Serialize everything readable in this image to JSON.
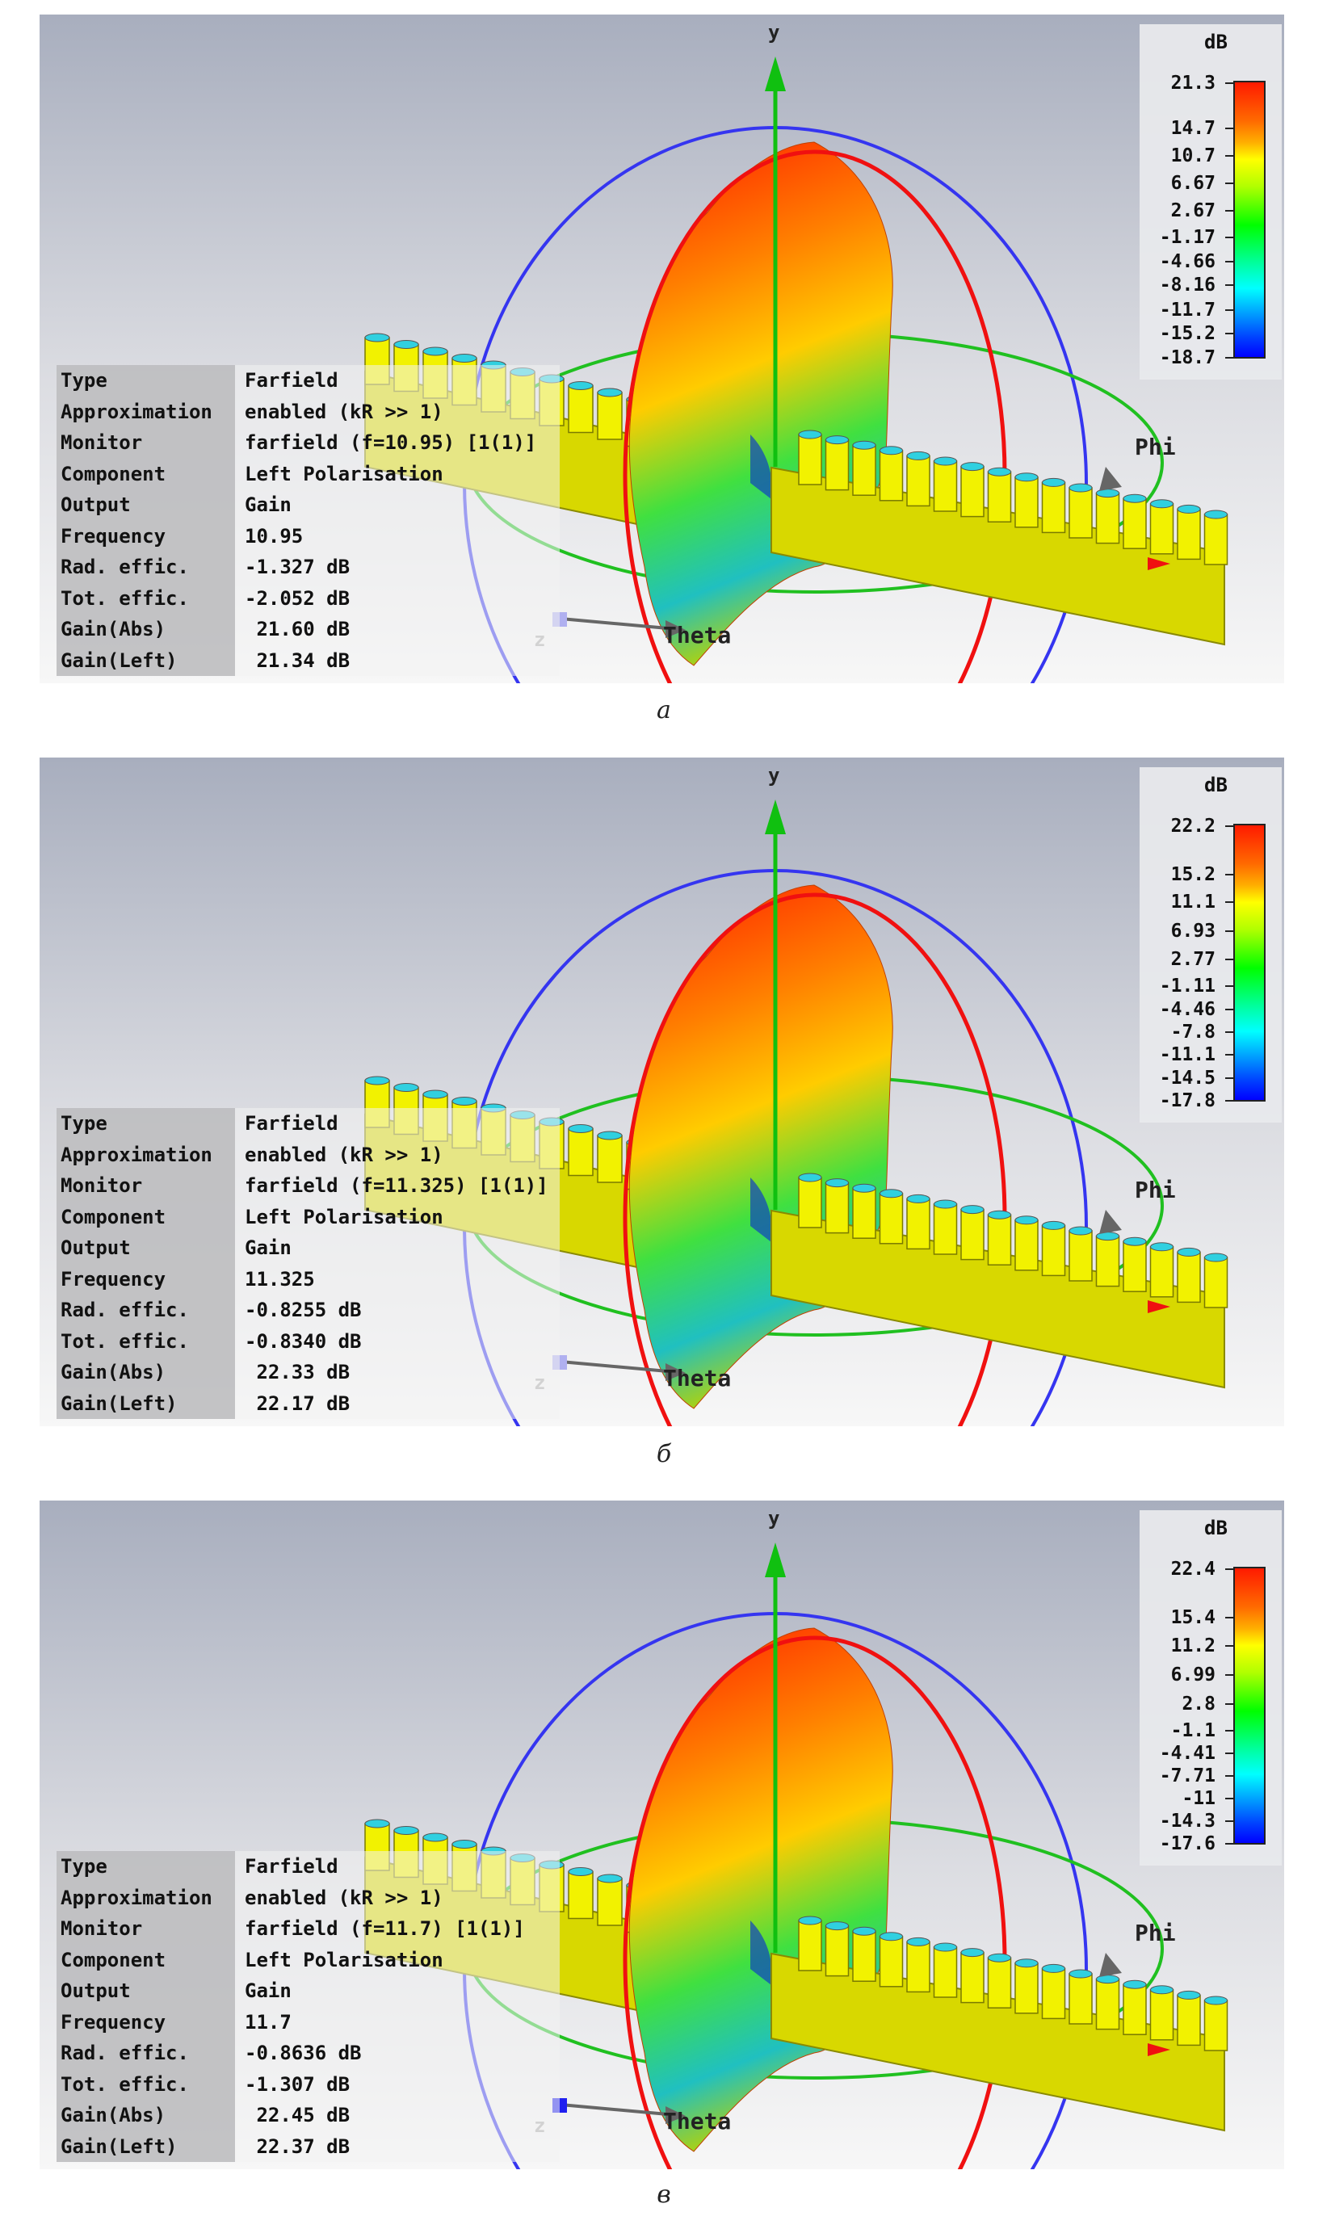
{
  "axis_labels": {
    "y": "y",
    "z": "z",
    "phi": "Phi",
    "theta": "Theta"
  },
  "colors": {
    "lobe_top": "#ff1a00",
    "lobe_mid": "#ffcc00",
    "lobe_low": "#40e040",
    "lobe_bottom": "#20c0c0",
    "array": "#d8d800",
    "blue_circle": "#3535f0",
    "red_circle": "#f01010",
    "green_circle": "#20c020"
  },
  "panels": [
    {
      "caption": "а",
      "legend": {
        "unit": "dB",
        "ticks": [
          "21.3",
          "14.7",
          "10.7",
          "6.67",
          "2.67",
          "-1.17",
          "-4.66",
          "-8.16",
          "-11.7",
          "-15.2",
          "-18.7"
        ]
      },
      "info": [
        {
          "key": "Type",
          "value": "Farfield"
        },
        {
          "key": "Approximation",
          "value": "enabled (kR >> 1)"
        },
        {
          "key": "Monitor",
          "value": "farfield (f=10.95) [1(1)]"
        },
        {
          "key": "Component",
          "value": "Left Polarisation"
        },
        {
          "key": "Output",
          "value": "Gain"
        },
        {
          "key": "Frequency",
          "value": "10.95"
        },
        {
          "key": "Rad. effic.",
          "value": "-1.327 dB"
        },
        {
          "key": "Tot. effic.",
          "value": "-2.052 dB"
        },
        {
          "key": "Gain(Abs)",
          "value": " 21.60 dB"
        },
        {
          "key": "Gain(Left)",
          "value": " 21.34 dB"
        }
      ]
    },
    {
      "caption": "б",
      "legend": {
        "unit": "dB",
        "ticks": [
          "22.2",
          "15.2",
          "11.1",
          "6.93",
          "2.77",
          "-1.11",
          "-4.46",
          "-7.8",
          "-11.1",
          "-14.5",
          "-17.8"
        ]
      },
      "info": [
        {
          "key": "Type",
          "value": "Farfield"
        },
        {
          "key": "Approximation",
          "value": "enabled (kR >> 1)"
        },
        {
          "key": "Monitor",
          "value": "farfield (f=11.325) [1(1)]"
        },
        {
          "key": "Component",
          "value": "Left Polarisation"
        },
        {
          "key": "Output",
          "value": "Gain"
        },
        {
          "key": "Frequency",
          "value": "11.325"
        },
        {
          "key": "Rad. effic.",
          "value": "-0.8255 dB"
        },
        {
          "key": "Tot. effic.",
          "value": "-0.8340 dB"
        },
        {
          "key": "Gain(Abs)",
          "value": " 22.33 dB"
        },
        {
          "key": "Gain(Left)",
          "value": " 22.17 dB"
        }
      ]
    },
    {
      "caption": "в",
      "legend": {
        "unit": "dB",
        "ticks": [
          "22.4",
          "15.4",
          "11.2",
          "6.99",
          "2.8",
          "-1.1",
          "-4.41",
          "-7.71",
          "-11",
          "-14.3",
          "-17.6"
        ]
      },
      "info": [
        {
          "key": "Type",
          "value": "Farfield"
        },
        {
          "key": "Approximation",
          "value": "enabled (kR >> 1)"
        },
        {
          "key": "Monitor",
          "value": "farfield (f=11.7) [1(1)]"
        },
        {
          "key": "Component",
          "value": "Left Polarisation"
        },
        {
          "key": "Output",
          "value": "Gain"
        },
        {
          "key": "Frequency",
          "value": "11.7"
        },
        {
          "key": "Rad. effic.",
          "value": "-0.8636 dB"
        },
        {
          "key": "Tot. effic.",
          "value": "-1.307 dB"
        },
        {
          "key": "Gain(Abs)",
          "value": " 22.45 dB"
        },
        {
          "key": "Gain(Left)",
          "value": " 22.37 dB"
        }
      ]
    }
  ]
}
